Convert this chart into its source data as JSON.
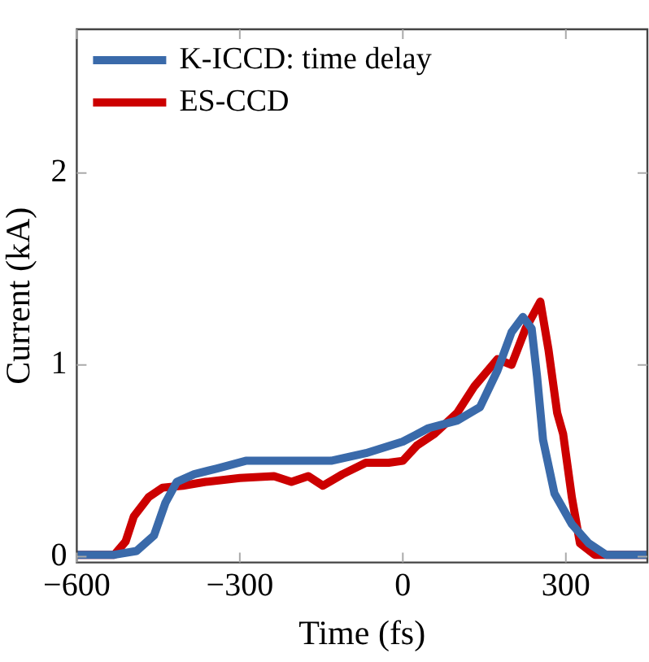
{
  "chart_data": {
    "type": "line",
    "xlabel": "Time (fs)",
    "ylabel": "Current (kA)",
    "xlim": [
      -600,
      450
    ],
    "ylim": [
      -0.03,
      2.75
    ],
    "xticks": [
      {
        "value": -600,
        "label": "−600"
      },
      {
        "value": -300,
        "label": "−300"
      },
      0,
      300
    ],
    "yticks": [
      0,
      1,
      2
    ],
    "grid": false,
    "legend": "top left",
    "marker": "none",
    "line_style": "solid",
    "series": [
      {
        "name": "K-ICCD: time delay",
        "color": "#3a6aaa",
        "x": [
          -600,
          -531,
          -490,
          -458,
          -437,
          -416,
          -384,
          -342,
          -289,
          -216,
          -132,
          -68,
          0,
          47,
          100,
          142,
          174,
          200,
          221,
          237,
          247,
          258,
          279,
          311,
          342,
          374,
          450
        ],
        "values": [
          0.01,
          0.01,
          0.03,
          0.11,
          0.28,
          0.39,
          0.43,
          0.46,
          0.5,
          0.5,
          0.5,
          0.54,
          0.6,
          0.67,
          0.71,
          0.78,
          0.97,
          1.17,
          1.25,
          1.19,
          0.94,
          0.61,
          0.33,
          0.17,
          0.07,
          0.01,
          0.01
        ]
      },
      {
        "name": "ES-CCD",
        "color": "#cc0000",
        "x": [
          -600,
          -531,
          -510,
          -495,
          -468,
          -442,
          -405,
          -363,
          -300,
          -237,
          -205,
          -174,
          -147,
          -111,
          -68,
          -26,
          0,
          26,
          58,
          100,
          132,
          174,
          200,
          226,
          253,
          268,
          284,
          295,
          311,
          326,
          353,
          450
        ],
        "values": [
          0.01,
          0.01,
          0.08,
          0.21,
          0.31,
          0.36,
          0.37,
          0.39,
          0.41,
          0.42,
          0.39,
          0.42,
          0.37,
          0.43,
          0.49,
          0.49,
          0.5,
          0.58,
          0.64,
          0.75,
          0.89,
          1.03,
          1.0,
          1.19,
          1.33,
          1.08,
          0.75,
          0.64,
          0.31,
          0.07,
          0.01,
          0.01
        ]
      }
    ]
  }
}
